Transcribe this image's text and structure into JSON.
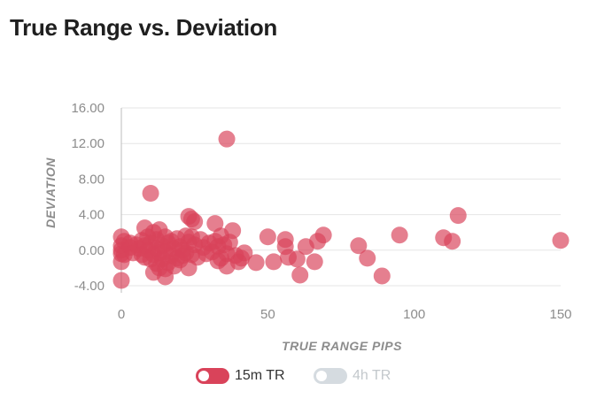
{
  "title": "True Range vs. Deviation",
  "colors": {
    "series_active": "#d9435a",
    "point_fill": "rgba(217,67,90,0.68)",
    "series_inactive": "#d5dbe0",
    "grid": "#e6e6e6",
    "tick": "#8c8c8c"
  },
  "legend": [
    {
      "label": "15m TR",
      "active": true
    },
    {
      "label": "4h TR",
      "active": false
    }
  ],
  "chart_data": {
    "type": "scatter",
    "title": "True Range vs. Deviation",
    "xlabel": "TRUE RANGE PIPS",
    "ylabel": "DEVIATION",
    "xlim": [
      0,
      150
    ],
    "ylim": [
      -4,
      16
    ],
    "x_ticks": [
      "0",
      "50",
      "100",
      "150"
    ],
    "y_ticks": [
      "16.00",
      "12.00",
      "8.00",
      "4.00",
      "0.00",
      "-4.00"
    ],
    "grid": "horizontal",
    "legend_position": "bottom",
    "series": [
      {
        "name": "15m TR",
        "points": [
          [
            0,
            1.5
          ],
          [
            0,
            0.5
          ],
          [
            0,
            0
          ],
          [
            0,
            -0.4
          ],
          [
            0,
            -1.3
          ],
          [
            0,
            -3.4
          ],
          [
            1,
            1
          ],
          [
            1,
            -0.5
          ],
          [
            3,
            0.8
          ],
          [
            3,
            0.3
          ],
          [
            4,
            -0.3
          ],
          [
            5,
            0.6
          ],
          [
            6,
            0.2
          ],
          [
            7,
            1.1
          ],
          [
            7,
            -0.5
          ],
          [
            8,
            2.5
          ],
          [
            8,
            0.5
          ],
          [
            8,
            -0.8
          ],
          [
            9,
            1.5
          ],
          [
            9,
            0
          ],
          [
            10,
            6.4
          ],
          [
            10,
            0.8
          ],
          [
            10,
            -1
          ],
          [
            11,
            2
          ],
          [
            11,
            -0.5
          ],
          [
            11,
            -2.5
          ],
          [
            12,
            1.2
          ],
          [
            12,
            0.2
          ],
          [
            12,
            -1.5
          ],
          [
            13,
            2.3
          ],
          [
            13,
            -0.3
          ],
          [
            13,
            -2
          ],
          [
            14,
            0.5
          ],
          [
            14,
            -1
          ],
          [
            15,
            1.5
          ],
          [
            15,
            -0.2
          ],
          [
            15,
            -2.1
          ],
          [
            15,
            -3
          ],
          [
            16,
            0.8
          ],
          [
            16,
            -1.4
          ],
          [
            17,
            1
          ],
          [
            17,
            -0.6
          ],
          [
            18,
            0.2
          ],
          [
            18,
            -1.8
          ],
          [
            19,
            1.3
          ],
          [
            19,
            -0.9
          ],
          [
            20,
            0.4
          ],
          [
            20,
            -1.1
          ],
          [
            21,
            0
          ],
          [
            21,
            -0.6
          ],
          [
            22,
            1.6
          ],
          [
            22,
            -0.3
          ],
          [
            23,
            3.8
          ],
          [
            23,
            0.9
          ],
          [
            23,
            -2
          ],
          [
            24,
            3.5
          ],
          [
            24,
            1.5
          ],
          [
            24,
            -0.5
          ],
          [
            25,
            3.2
          ],
          [
            25,
            0.6
          ],
          [
            26,
            -0.8
          ],
          [
            27,
            1.2
          ],
          [
            28,
            0.3
          ],
          [
            29,
            -0.4
          ],
          [
            30,
            0.8
          ],
          [
            31,
            -0.2
          ],
          [
            32,
            3
          ],
          [
            32,
            1
          ],
          [
            33,
            0.4
          ],
          [
            33,
            -1.2
          ],
          [
            34,
            1.6
          ],
          [
            34,
            -0.9
          ],
          [
            35,
            0.6
          ],
          [
            36,
            12.5
          ],
          [
            36,
            -0.4
          ],
          [
            36,
            -1.8
          ],
          [
            37,
            0.9
          ],
          [
            38,
            2.2
          ],
          [
            39,
            -0.6
          ],
          [
            40,
            -1.3
          ],
          [
            41,
            -0.9
          ],
          [
            42,
            -0.3
          ],
          [
            46,
            -1.4
          ],
          [
            50,
            1.5
          ],
          [
            52,
            -1.3
          ],
          [
            56,
            1.2
          ],
          [
            56,
            0.4
          ],
          [
            57,
            -0.8
          ],
          [
            60,
            -1
          ],
          [
            61,
            -2.8
          ],
          [
            63,
            0.4
          ],
          [
            66,
            -1.3
          ],
          [
            67,
            1
          ],
          [
            69,
            1.7
          ],
          [
            81,
            0.5
          ],
          [
            84,
            -0.9
          ],
          [
            89,
            -2.9
          ],
          [
            95,
            1.7
          ],
          [
            110,
            1.4
          ],
          [
            113,
            1
          ],
          [
            115,
            3.9
          ],
          [
            150,
            1.1
          ]
        ]
      }
    ]
  }
}
